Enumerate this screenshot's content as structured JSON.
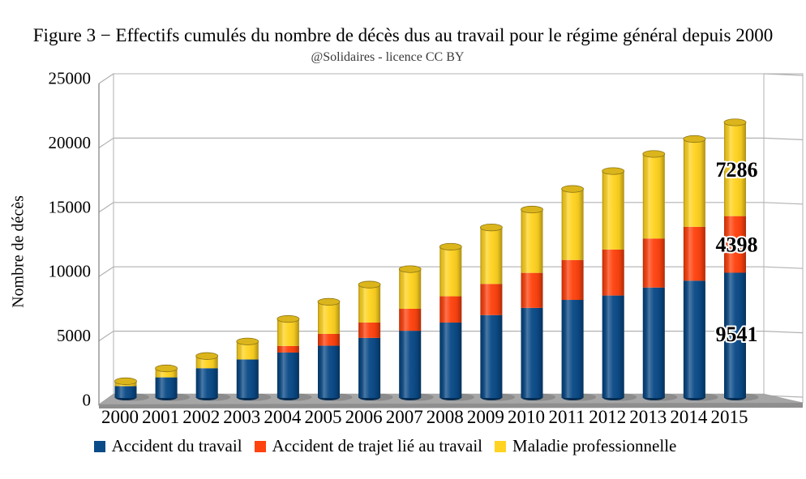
{
  "chart_data": {
    "type": "bar",
    "stacked": true,
    "title": "Figure 3 − Effectifs cumulés du nombre de décès dus au travail pour le régime général depuis 2000",
    "subtitle": "@Solidaires - licence CC BY",
    "ylabel": "Nombre de décès",
    "xlabel": "",
    "ylim": [
      0,
      25000
    ],
    "yticks": [
      0,
      5000,
      10000,
      15000,
      20000,
      25000
    ],
    "grid": "horizontal",
    "legend_position": "bottom",
    "categories": [
      "2000",
      "2001",
      "2002",
      "2003",
      "2004",
      "2005",
      "2006",
      "2007",
      "2008",
      "2009",
      "2010",
      "2011",
      "2012",
      "2013",
      "2014",
      "2015"
    ],
    "series": [
      {
        "name": "Accident du travail",
        "color": "#0a4a87",
        "values": [
          730,
          1410,
          2120,
          2800,
          3340,
          3870,
          4480,
          5030,
          5670,
          6250,
          6810,
          7430,
          7770,
          8390,
          8920,
          9541
        ]
      },
      {
        "name": "Accident de trajet lié au travail",
        "color": "#ff420e",
        "values": [
          0,
          0,
          0,
          0,
          510,
          920,
          1190,
          1710,
          2040,
          2420,
          2720,
          3100,
          3570,
          3810,
          4190,
          4398
        ]
      },
      {
        "name": "Maladie professionnelle",
        "color": "#ffd320",
        "values": [
          380,
          700,
          950,
          1400,
          2100,
          2490,
          2950,
          3080,
          3850,
          4390,
          4920,
          5520,
          6100,
          6570,
          6820,
          7286
        ]
      }
    ],
    "annotations": [
      {
        "text": "7286",
        "series": "Maladie professionnelle"
      },
      {
        "text": "4398",
        "series": "Accident de trajet lié au travail"
      },
      {
        "text": "9541",
        "series": "Accident du travail"
      }
    ],
    "colors": {
      "gridline": "#b2b2b2",
      "axis_line": "#909090",
      "floor_top": "#a6a6a6",
      "floor_front": "#8e8e8e",
      "annotation_text": "#111111",
      "annotation_halo": "#ffffff"
    }
  }
}
